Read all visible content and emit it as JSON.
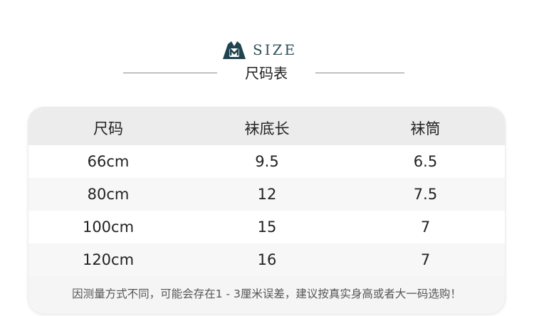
{
  "brand": {
    "logo_icon": "m-logo-icon",
    "logo_color": "#1f4450",
    "word": "SIZE"
  },
  "title": "尺码表",
  "table": {
    "headers": [
      "尺码",
      "袜底长",
      "袜筒"
    ],
    "rows": [
      [
        "66cm",
        "9.5",
        "6.5"
      ],
      [
        "80cm",
        "12",
        "7.5"
      ],
      [
        "100cm",
        "15",
        "7"
      ],
      [
        "120cm",
        "16",
        "7"
      ]
    ],
    "note": "因测量方式不同，可能会存在1 - 3厘米误差，建议按真实身高或者大一码选购！"
  }
}
